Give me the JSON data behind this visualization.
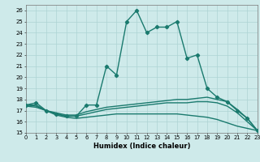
{
  "title": "",
  "xlabel": "Humidex (Indice chaleur)",
  "xlim": [
    0,
    23
  ],
  "ylim": [
    15,
    26.5
  ],
  "xticks": [
    0,
    1,
    2,
    3,
    4,
    5,
    6,
    7,
    8,
    9,
    10,
    11,
    12,
    13,
    14,
    15,
    16,
    17,
    18,
    19,
    20,
    21,
    22,
    23
  ],
  "yticks": [
    15,
    16,
    17,
    18,
    19,
    20,
    21,
    22,
    23,
    24,
    25,
    26
  ],
  "bg_color": "#ceeaea",
  "grid_color": "#aed4d4",
  "line_color": "#1a7a6e",
  "lines": [
    {
      "x": [
        0,
        1,
        2,
        3,
        4,
        5,
        6,
        7,
        8,
        9,
        10,
        11,
        12,
        13,
        14,
        15,
        16,
        17,
        18,
        19,
        20,
        21,
        22,
        23
      ],
      "y": [
        17.5,
        17.7,
        17.0,
        16.7,
        16.5,
        16.5,
        17.5,
        17.5,
        21.0,
        20.2,
        25.0,
        26.0,
        24.0,
        24.5,
        24.5,
        25.0,
        21.7,
        22.0,
        19.0,
        18.2,
        17.8,
        17.0,
        16.3,
        15.2
      ],
      "marker": "D",
      "markersize": 2.2,
      "linewidth": 1.0
    },
    {
      "x": [
        0,
        1,
        2,
        3,
        4,
        5,
        6,
        7,
        8,
        9,
        10,
        11,
        12,
        13,
        14,
        15,
        16,
        17,
        18,
        19,
        20,
        21,
        22,
        23
      ],
      "y": [
        17.5,
        17.5,
        17.0,
        16.8,
        16.6,
        16.6,
        16.9,
        17.1,
        17.3,
        17.4,
        17.5,
        17.6,
        17.7,
        17.8,
        17.9,
        18.0,
        18.0,
        18.1,
        18.2,
        18.0,
        17.8,
        17.1,
        16.3,
        15.2
      ],
      "marker": null,
      "linewidth": 1.0
    },
    {
      "x": [
        0,
        1,
        2,
        3,
        4,
        5,
        6,
        7,
        8,
        9,
        10,
        11,
        12,
        13,
        14,
        15,
        16,
        17,
        18,
        19,
        20,
        21,
        22,
        23
      ],
      "y": [
        17.5,
        17.4,
        17.0,
        16.7,
        16.5,
        16.5,
        16.7,
        16.9,
        17.1,
        17.2,
        17.3,
        17.4,
        17.5,
        17.6,
        17.7,
        17.7,
        17.7,
        17.8,
        17.8,
        17.7,
        17.4,
        16.8,
        16.0,
        15.2
      ],
      "marker": null,
      "linewidth": 1.0
    },
    {
      "x": [
        0,
        1,
        2,
        3,
        4,
        5,
        6,
        7,
        8,
        9,
        10,
        11,
        12,
        13,
        14,
        15,
        16,
        17,
        18,
        19,
        20,
        21,
        22,
        23
      ],
      "y": [
        17.4,
        17.3,
        17.0,
        16.6,
        16.4,
        16.3,
        16.4,
        16.5,
        16.6,
        16.7,
        16.7,
        16.7,
        16.7,
        16.7,
        16.7,
        16.7,
        16.6,
        16.5,
        16.4,
        16.2,
        15.9,
        15.6,
        15.4,
        15.2
      ],
      "marker": null,
      "linewidth": 1.0
    }
  ]
}
